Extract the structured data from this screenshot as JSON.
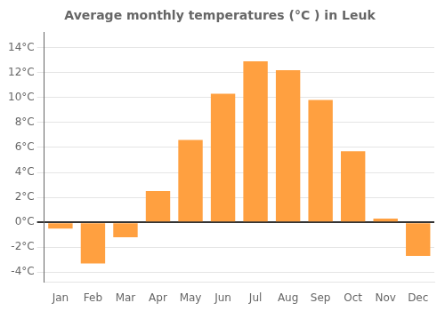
{
  "chart_data": {
    "type": "bar",
    "title": "Average monthly temperatures (°C ) in Leuk",
    "categories": [
      "Jan",
      "Feb",
      "Mar",
      "Apr",
      "May",
      "Jun",
      "Jul",
      "Aug",
      "Sep",
      "Oct",
      "Nov",
      "Dec"
    ],
    "values": [
      -0.5,
      -3.3,
      -1.2,
      2.5,
      6.6,
      10.3,
      12.9,
      12.2,
      9.8,
      5.7,
      0.3,
      -2.7
    ],
    "color": "#FFA040",
    "ylim": [
      -4.8,
      15.2
    ],
    "yticks": [
      {
        "value": -4,
        "label": "-4°C"
      },
      {
        "value": -2,
        "label": "-2°C"
      },
      {
        "value": 0,
        "label": "0°C"
      },
      {
        "value": 2,
        "label": "2°C"
      },
      {
        "value": 4,
        "label": "4°C"
      },
      {
        "value": 6,
        "label": "6°C"
      },
      {
        "value": 8,
        "label": "8°C"
      },
      {
        "value": 10,
        "label": "10°C"
      },
      {
        "value": 12,
        "label": "12°C"
      },
      {
        "value": 14,
        "label": "14°C"
      }
    ],
    "grid": true
  }
}
